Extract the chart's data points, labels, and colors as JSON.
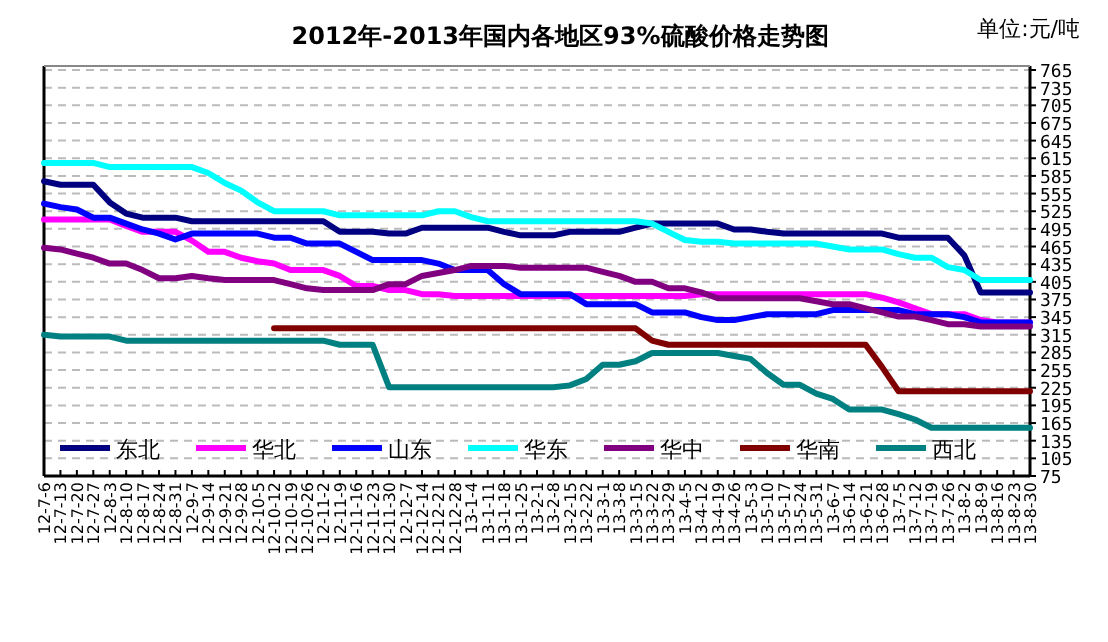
{
  "chart_data": {
    "type": "line",
    "title": "2012年-2013年国内各地区93%硫酸价格走势图",
    "annotations": [
      "单位:元/吨"
    ],
    "categories": [
      "12-7-6",
      "12-7-13",
      "12-7-20",
      "12-7-27",
      "12-8-3",
      "12-8-10",
      "12-8-17",
      "12-8-24",
      "12-8-31",
      "12-9-7",
      "12-9-14",
      "12-9-21",
      "12-9-28",
      "12-10-5",
      "12-10-12",
      "12-10-19",
      "12-10-26",
      "12-11-2",
      "12-11-9",
      "12-11-16",
      "12-11-23",
      "12-11-30",
      "12-12-7",
      "12-12-14",
      "12-12-21",
      "12-12-28",
      "13-1-4",
      "13-1-11",
      "13-1-18",
      "13-1-25",
      "13-2-1",
      "13-2-8",
      "13-2-15",
      "13-2-22",
      "13-3-1",
      "13-3-8",
      "13-3-15",
      "13-3-22",
      "13-3-29",
      "13-4-5",
      "13-4-12",
      "13-4-19",
      "13-4-26",
      "13-5-3",
      "13-5-10",
      "13-5-17",
      "13-5-24",
      "13-5-31",
      "13-6-7",
      "13-6-14",
      "13-6-21",
      "13-6-28",
      "13-7-5",
      "13-7-12",
      "13-7-19",
      "13-7-26",
      "13-8-2",
      "13-8-9",
      "13-8-16",
      "13-8-23",
      "13-8-30"
    ],
    "series": [
      {
        "name": "东北",
        "color": "#000080",
        "values": [
          576,
          570,
          570,
          570,
          540,
          521,
          514,
          514,
          514,
          508,
          508,
          508,
          508,
          508,
          508,
          508,
          508,
          508,
          490,
          490,
          490,
          487,
          487,
          497,
          497,
          497,
          497,
          497,
          490,
          484,
          484,
          484,
          490,
          490,
          490,
          490,
          497,
          504,
          504,
          504,
          504,
          504,
          494,
          494,
          490,
          487,
          487,
          487,
          487,
          487,
          487,
          487,
          480,
          480,
          480,
          480,
          450,
          387,
          387,
          387,
          387
        ]
      },
      {
        "name": "华北",
        "color": "#ff00ff",
        "values": [
          511,
          511,
          511,
          511,
          511,
          500,
          490,
          490,
          490,
          475,
          456,
          456,
          446,
          440,
          436,
          425,
          425,
          425,
          415,
          398,
          398,
          391,
          391,
          384,
          384,
          381,
          381,
          381,
          381,
          381,
          381,
          381,
          381,
          381,
          381,
          381,
          381,
          381,
          381,
          381,
          384,
          384,
          384,
          384,
          384,
          384,
          384,
          384,
          384,
          384,
          384,
          378,
          370,
          360,
          350,
          350,
          350,
          340,
          336,
          336,
          336
        ]
      },
      {
        "name": "山东",
        "color": "#0000ff",
        "values": [
          538,
          532,
          528,
          514,
          514,
          504,
          494,
          487,
          477,
          487,
          487,
          487,
          487,
          487,
          480,
          480,
          470,
          470,
          470,
          456,
          442,
          442,
          442,
          442,
          436,
          425,
          425,
          425,
          401,
          384,
          384,
          384,
          384,
          367,
          367,
          367,
          367,
          353,
          353,
          353,
          345,
          340,
          340,
          345,
          350,
          350,
          350,
          350,
          357,
          357,
          357,
          357,
          357,
          350,
          350,
          350,
          345,
          336,
          336,
          336,
          336
        ]
      },
      {
        "name": "华东",
        "color": "#00ffff",
        "values": [
          607,
          607,
          607,
          607,
          600,
          600,
          600,
          600,
          600,
          600,
          590,
          573,
          560,
          540,
          525,
          525,
          525,
          525,
          518,
          518,
          518,
          518,
          518,
          518,
          525,
          525,
          515,
          508,
          508,
          508,
          508,
          508,
          508,
          508,
          508,
          508,
          508,
          504,
          490,
          476,
          473,
          473,
          470,
          470,
          470,
          470,
          470,
          470,
          465,
          460,
          460,
          460,
          452,
          446,
          446,
          430,
          425,
          408,
          408,
          408,
          408
        ]
      },
      {
        "name": "华中",
        "color": "#800080",
        "values": [
          463,
          460,
          453,
          446,
          436,
          436,
          425,
          411,
          411,
          415,
          411,
          408,
          408,
          408,
          408,
          401,
          394,
          391,
          391,
          391,
          391,
          401,
          401,
          415,
          420,
          425,
          432,
          432,
          432,
          429,
          429,
          429,
          429,
          429,
          422,
          415,
          405,
          405,
          394,
          394,
          387,
          377,
          377,
          377,
          377,
          377,
          377,
          372,
          367,
          367,
          360,
          353,
          346,
          346,
          340,
          333,
          333,
          329,
          329,
          329,
          329
        ]
      },
      {
        "name": "华南",
        "color": "#800000",
        "values": [
          null,
          null,
          null,
          null,
          null,
          null,
          null,
          null,
          null,
          null,
          null,
          null,
          null,
          null,
          326,
          326,
          326,
          326,
          326,
          326,
          326,
          326,
          326,
          326,
          326,
          326,
          326,
          326,
          326,
          326,
          326,
          326,
          326,
          326,
          326,
          326,
          326,
          305,
          298,
          298,
          298,
          298,
          298,
          298,
          298,
          298,
          298,
          298,
          298,
          298,
          298,
          260,
          219,
          219,
          219,
          219,
          219,
          219,
          219,
          219,
          219
        ]
      },
      {
        "name": "西北",
        "color": "#008080",
        "values": [
          315,
          312,
          312,
          312,
          312,
          305,
          305,
          305,
          305,
          305,
          305,
          305,
          305,
          305,
          305,
          305,
          305,
          305,
          298,
          298,
          298,
          226,
          226,
          226,
          226,
          226,
          226,
          226,
          226,
          226,
          226,
          226,
          229,
          240,
          264,
          264,
          270,
          284,
          284,
          284,
          284,
          284,
          279,
          274,
          250,
          230,
          230,
          215,
          206,
          188,
          188,
          188,
          180,
          171,
          157,
          157,
          157,
          157,
          157,
          157,
          157
        ]
      }
    ],
    "ylim": [
      75,
      765
    ],
    "yticks": [
      75,
      105,
      135,
      165,
      195,
      225,
      255,
      285,
      315,
      345,
      375,
      405,
      435,
      465,
      495,
      525,
      555,
      585,
      615,
      645,
      675,
      705,
      735,
      765
    ],
    "grid": "y",
    "legend": "bottom",
    "line_style": "solid",
    "marker": "none"
  }
}
